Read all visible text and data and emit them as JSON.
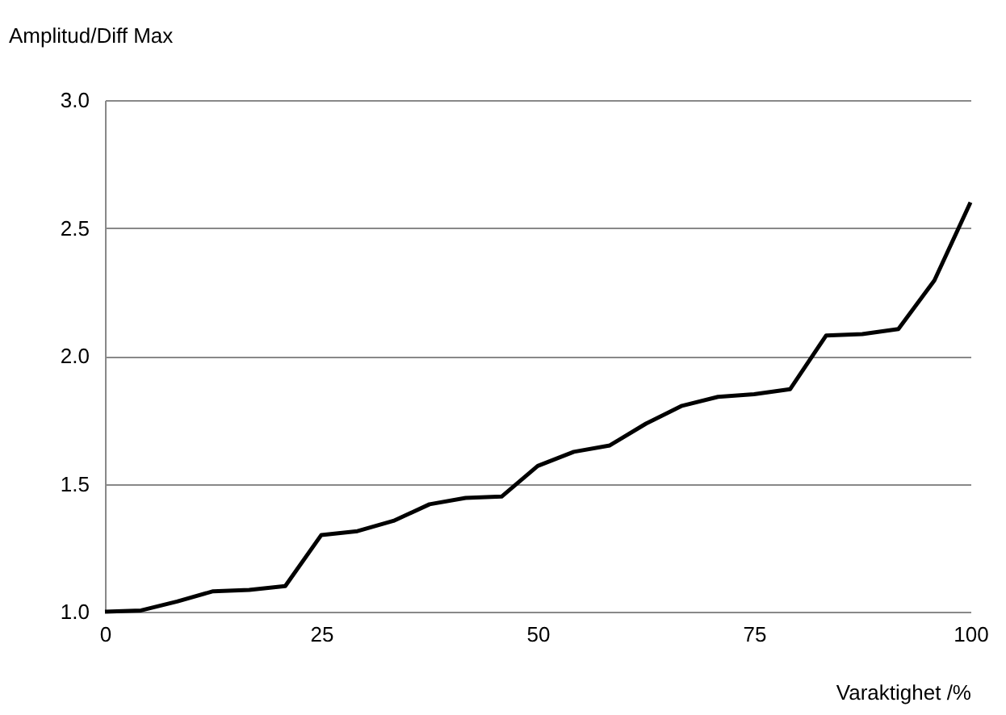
{
  "chart_data": {
    "type": "line",
    "xlabel": "Varaktighet /%",
    "ylabel": "Amplitud/Diff Max",
    "x": [
      0,
      4.17,
      8.33,
      12.5,
      16.67,
      20.83,
      25,
      29.17,
      33.33,
      37.5,
      41.67,
      45.83,
      50,
      54.17,
      58.33,
      62.5,
      66.67,
      70.83,
      75,
      79.17,
      83.33,
      87.5,
      91.67,
      95.83,
      100
    ],
    "series": [
      {
        "color": "#000000",
        "values": [
          1.0,
          1.005,
          1.04,
          1.08,
          1.085,
          1.1,
          1.3,
          1.315,
          1.355,
          1.42,
          1.445,
          1.45,
          1.57,
          1.625,
          1.65,
          1.735,
          1.805,
          1.84,
          1.85,
          1.87,
          2.08,
          2.085,
          2.105,
          2.295,
          2.6
        ]
      }
    ],
    "xlim": [
      0,
      100
    ],
    "xticks": [
      0,
      25,
      50,
      75,
      100
    ],
    "ylim": [
      1,
      3
    ],
    "yticks": [
      {
        "value": 1,
        "label": "1.0"
      },
      {
        "value": 1.5,
        "label": "1.5"
      },
      {
        "value": 2,
        "label": "2.0"
      },
      {
        "value": 2.5,
        "label": "2.5"
      },
      {
        "value": 3,
        "label": "3.0"
      }
    ],
    "grid": "y",
    "marker": "none",
    "line_style": "solid"
  }
}
